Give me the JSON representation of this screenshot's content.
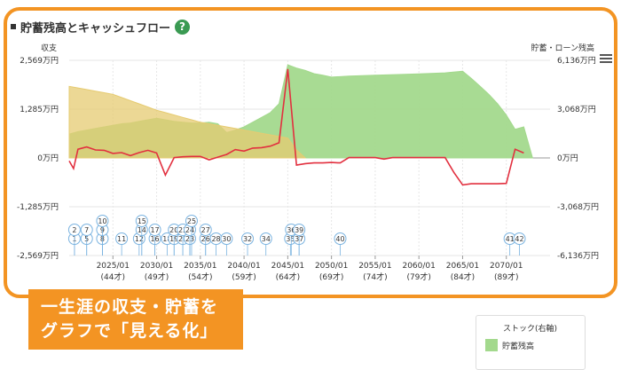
{
  "title": "貯蓄残高とキャッシュフロー",
  "help_icon": "question-icon",
  "menu_icon": "hamburger-icon",
  "banner": {
    "line1": "一生涯の収支・貯蓄を",
    "line2": "グラフで「見える化」"
  },
  "legend": {
    "title": "ストック(右軸)",
    "item": "貯蓄残高",
    "swatch_color": "#a3d98d"
  },
  "chart_data": {
    "type": "area",
    "left_axis_label": "収支",
    "right_axis_label": "貯蓄・ローン残高",
    "left_ticks": [
      "2,569万円",
      "1,285万円",
      "0万円",
      "-1,285万円",
      "-2,569万円"
    ],
    "right_ticks": [
      "6,136万円",
      "3,068万円",
      "0万円",
      "-3,068万円",
      "-6,136万円"
    ],
    "ylim_left": [
      -2569,
      2569
    ],
    "ylim_right": [
      -6136,
      6136
    ],
    "xlim": [
      2020,
      2075
    ],
    "x_ticks": [
      {
        "year": 2025,
        "date": "2025/01",
        "age": "(44才)"
      },
      {
        "year": 2030,
        "date": "2030/01",
        "age": "(49才)"
      },
      {
        "year": 2035,
        "date": "2035/01",
        "age": "(54才)"
      },
      {
        "year": 2040,
        "date": "2040/01",
        "age": "(59才)"
      },
      {
        "year": 2045,
        "date": "2045/01",
        "age": "(64才)"
      },
      {
        "year": 2050,
        "date": "2050/01",
        "age": "(69才)"
      },
      {
        "year": 2055,
        "date": "2055/01",
        "age": "(74才)"
      },
      {
        "year": 2060,
        "date": "2060/01",
        "age": "(79才)"
      },
      {
        "year": 2065,
        "date": "2065/01",
        "age": "(84才)"
      },
      {
        "year": 2070,
        "date": "2070/01",
        "age": "(89才)"
      }
    ],
    "series": [
      {
        "name": "貯蓄残高",
        "axis": "right",
        "kind": "area",
        "color": "#a3d98d",
        "points": [
          [
            2020,
            1500
          ],
          [
            2021,
            1650
          ],
          [
            2022,
            1750
          ],
          [
            2023,
            1850
          ],
          [
            2024,
            1950
          ],
          [
            2025,
            2050
          ],
          [
            2026,
            2150
          ],
          [
            2027,
            2200
          ],
          [
            2028,
            2300
          ],
          [
            2029,
            2400
          ],
          [
            2030,
            2500
          ],
          [
            2031,
            2400
          ],
          [
            2032,
            2300
          ],
          [
            2033,
            2250
          ],
          [
            2034,
            2200
          ],
          [
            2035,
            2200
          ],
          [
            2036,
            2250
          ],
          [
            2037,
            2150
          ],
          [
            2038,
            1600
          ],
          [
            2039,
            1750
          ],
          [
            2040,
            1950
          ],
          [
            2041,
            2250
          ],
          [
            2042,
            2550
          ],
          [
            2043,
            2850
          ],
          [
            2044,
            3400
          ],
          [
            2045,
            5850
          ],
          [
            2046,
            5650
          ],
          [
            2047,
            5500
          ],
          [
            2048,
            5300
          ],
          [
            2049,
            5200
          ],
          [
            2050,
            5080
          ],
          [
            2052,
            5150
          ],
          [
            2055,
            5200
          ],
          [
            2058,
            5250
          ],
          [
            2060,
            5280
          ],
          [
            2063,
            5350
          ],
          [
            2065,
            5450
          ],
          [
            2066,
            5000
          ],
          [
            2067,
            4500
          ],
          [
            2068,
            4000
          ],
          [
            2069,
            3400
          ],
          [
            2070,
            2700
          ],
          [
            2071,
            1800
          ],
          [
            2072,
            1950
          ],
          [
            2073,
            0
          ]
        ]
      },
      {
        "name": "",
        "axis": "right",
        "kind": "area",
        "color": "#e6cb71",
        "points": [
          [
            2020,
            4500
          ],
          [
            2021,
            4400
          ],
          [
            2022,
            4300
          ],
          [
            2023,
            4200
          ],
          [
            2024,
            4100
          ],
          [
            2025,
            4000
          ],
          [
            2026,
            3800
          ],
          [
            2027,
            3600
          ],
          [
            2028,
            3400
          ],
          [
            2029,
            3200
          ],
          [
            2030,
            3000
          ],
          [
            2031,
            2850
          ],
          [
            2032,
            2700
          ],
          [
            2033,
            2550
          ],
          [
            2034,
            2400
          ],
          [
            2035,
            2250
          ],
          [
            2036,
            2150
          ],
          [
            2037,
            2050
          ],
          [
            2038,
            1950
          ],
          [
            2039,
            1850
          ],
          [
            2040,
            1750
          ],
          [
            2041,
            1650
          ],
          [
            2042,
            1550
          ],
          [
            2043,
            1450
          ],
          [
            2044,
            1350
          ],
          [
            2045,
            1250
          ],
          [
            2046,
            500
          ],
          [
            2047,
            0
          ]
        ]
      },
      {
        "name": "",
        "axis": "left",
        "kind": "line",
        "color": "#e2303f",
        "points": [
          [
            2020,
            -80
          ],
          [
            2020.5,
            -280
          ],
          [
            2021,
            230
          ],
          [
            2022,
            290
          ],
          [
            2023,
            210
          ],
          [
            2024,
            200
          ],
          [
            2025,
            120
          ],
          [
            2026,
            140
          ],
          [
            2027,
            60
          ],
          [
            2028,
            140
          ],
          [
            2029,
            200
          ],
          [
            2030,
            130
          ],
          [
            2031,
            -450
          ],
          [
            2032,
            10
          ],
          [
            2033,
            30
          ],
          [
            2034,
            40
          ],
          [
            2035,
            40
          ],
          [
            2036,
            -50
          ],
          [
            2037,
            20
          ],
          [
            2038,
            90
          ],
          [
            2039,
            220
          ],
          [
            2040,
            180
          ],
          [
            2041,
            260
          ],
          [
            2042,
            270
          ],
          [
            2043,
            310
          ],
          [
            2044,
            400
          ],
          [
            2045,
            2340
          ],
          [
            2046,
            -190
          ],
          [
            2047,
            -150
          ],
          [
            2048,
            -130
          ],
          [
            2049,
            -130
          ],
          [
            2050,
            -120
          ],
          [
            2051,
            -130
          ],
          [
            2052,
            10
          ],
          [
            2053,
            10
          ],
          [
            2054,
            10
          ],
          [
            2055,
            10
          ],
          [
            2056,
            -30
          ],
          [
            2057,
            10
          ],
          [
            2058,
            10
          ],
          [
            2059,
            10
          ],
          [
            2060,
            10
          ],
          [
            2063,
            10
          ],
          [
            2064,
            -380
          ],
          [
            2065,
            -710
          ],
          [
            2066,
            -680
          ],
          [
            2069,
            -680
          ],
          [
            2070,
            -670
          ],
          [
            2071,
            230
          ],
          [
            2072,
            130
          ]
        ]
      }
    ],
    "event_markers": [
      {
        "year": 2020.6,
        "row": 1,
        "label": "1"
      },
      {
        "year": 2020.6,
        "row": 2,
        "label": "2"
      },
      {
        "year": 2022.0,
        "row": 1,
        "label": "5"
      },
      {
        "year": 2022.0,
        "row": 2,
        "label": "7"
      },
      {
        "year": 2023.8,
        "row": 1,
        "label": "8"
      },
      {
        "year": 2023.8,
        "row": 2,
        "label": "9"
      },
      {
        "year": 2023.8,
        "row": 3,
        "label": "10"
      },
      {
        "year": 2026.0,
        "row": 1,
        "label": "11"
      },
      {
        "year": 2028.0,
        "row": 1,
        "label": "12"
      },
      {
        "year": 2028.3,
        "row": 2,
        "label": "14"
      },
      {
        "year": 2028.3,
        "row": 3,
        "label": "15"
      },
      {
        "year": 2029.8,
        "row": 1,
        "label": "16"
      },
      {
        "year": 2029.8,
        "row": 2,
        "label": "17"
      },
      {
        "year": 2031.2,
        "row": 1,
        "label": "18"
      },
      {
        "year": 2032.0,
        "row": 1,
        "label": "19"
      },
      {
        "year": 2032.0,
        "row": 2,
        "label": "20"
      },
      {
        "year": 2033.0,
        "row": 1,
        "label": "21"
      },
      {
        "year": 2033.0,
        "row": 2,
        "label": "22"
      },
      {
        "year": 2033.8,
        "row": 1,
        "label": "23"
      },
      {
        "year": 2033.8,
        "row": 2,
        "label": "24"
      },
      {
        "year": 2034.0,
        "row": 3,
        "label": "25"
      },
      {
        "year": 2035.6,
        "row": 1,
        "label": "26"
      },
      {
        "year": 2035.6,
        "row": 2,
        "label": "27"
      },
      {
        "year": 2036.8,
        "row": 1,
        "label": "28"
      },
      {
        "year": 2038.0,
        "row": 1,
        "label": "30"
      },
      {
        "year": 2040.4,
        "row": 1,
        "label": "32"
      },
      {
        "year": 2042.5,
        "row": 1,
        "label": "34"
      },
      {
        "year": 2045.3,
        "row": 1,
        "label": "35"
      },
      {
        "year": 2045.4,
        "row": 2,
        "label": "36"
      },
      {
        "year": 2046.3,
        "row": 1,
        "label": "37"
      },
      {
        "year": 2046.3,
        "row": 2,
        "label": "39"
      },
      {
        "year": 2051.0,
        "row": 1,
        "label": "40"
      },
      {
        "year": 2070.4,
        "row": 1,
        "label": "41"
      },
      {
        "year": 2071.5,
        "row": 1,
        "label": "42"
      }
    ]
  }
}
